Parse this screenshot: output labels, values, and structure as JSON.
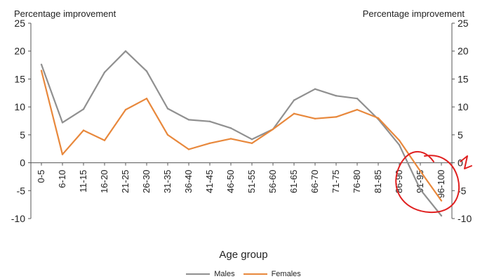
{
  "chart_data": {
    "type": "line",
    "categories": [
      "0-5",
      "6-10",
      "11-15",
      "16-20",
      "21-25",
      "26-30",
      "31-35",
      "36-40",
      "41-45",
      "46-50",
      "51-55",
      "56-60",
      "61-65",
      "66-70",
      "71-75",
      "76-80",
      "81-85",
      "86-90",
      "91-95",
      "96-100"
    ],
    "series": [
      {
        "name": "Males",
        "color": "#909090",
        "values": [
          17.6,
          7.2,
          9.6,
          16.2,
          20.0,
          16.4,
          9.7,
          7.7,
          7.4,
          6.2,
          4.2,
          6.0,
          11.2,
          13.2,
          12.0,
          11.5,
          7.8,
          3.2,
          -4.8,
          -9.5
        ]
      },
      {
        "name": "Females",
        "color": "#e8883c",
        "values": [
          16.5,
          1.5,
          5.8,
          4.0,
          9.5,
          11.5,
          5.0,
          2.4,
          3.5,
          4.3,
          3.5,
          6.0,
          8.8,
          7.9,
          8.2,
          9.5,
          8.0,
          4.0,
          -1.5,
          -6.8
        ]
      }
    ],
    "ylim": [
      -10,
      25
    ],
    "yticks": [
      -10,
      -5,
      0,
      5,
      10,
      15,
      20,
      25
    ],
    "ylabel_left": "Percentage improvement",
    "ylabel_right": "Percentage improvement",
    "xlabel": "Age group",
    "legend_position": "bottom",
    "grid": false
  },
  "annotation": {
    "color": "#e02020",
    "description": "hand-drawn red circle with squiggle"
  }
}
